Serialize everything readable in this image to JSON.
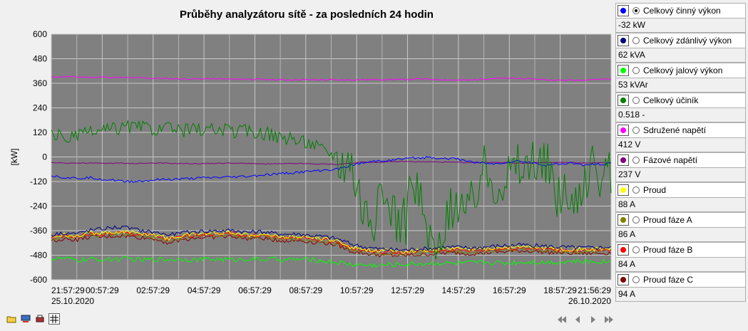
{
  "chart_data": {
    "type": "line",
    "title": "Průběhy analyzátoru sítě - za posledních 24 hodin",
    "ylabel": "[kW]",
    "ylim": [
      -600,
      600
    ],
    "yticks": [
      "600",
      "480",
      "360",
      "240",
      "120",
      "0",
      "-120",
      "-240",
      "-360",
      "-480",
      "-600"
    ],
    "xticks": [
      "21:57:29",
      "00:57:29",
      "02:57:29",
      "04:57:29",
      "06:57:29",
      "08:57:29",
      "10:57:29",
      "12:57:29",
      "14:57:29",
      "16:57:29",
      "18:57:29",
      "21:56:29"
    ],
    "date_start": "25.10.2020",
    "date_end": "26.10.2020",
    "grid": true,
    "series": [
      {
        "name": "Sdružené napětí",
        "color": "#ff00ff",
        "values": [
          390,
          392,
          391,
          389,
          390,
          388,
          387,
          386,
          384,
          383,
          381,
          381,
          382,
          381,
          380,
          381,
          379,
          378,
          377,
          378,
          377,
          378,
          376,
          377,
          378,
          378,
          379,
          378,
          381,
          380,
          378,
          376,
          375,
          380,
          384,
          384,
          383,
          381,
          377,
          375,
          375,
          377,
          380,
          382
        ]
      },
      {
        "name": "Celkový jalový výkon",
        "color": "#00ff00",
        "values": [
          -498,
          -496,
          -505,
          -500,
          -502,
          -499,
          -498,
          -504,
          -500,
          -501,
          -497,
          -503,
          -499,
          -500,
          -502,
          -498,
          -501,
          -499,
          -503,
          -500,
          -502,
          -510,
          -515,
          -525,
          -528,
          -530,
          -527,
          -525,
          -522,
          -520,
          -518,
          -521,
          -519,
          -515,
          -516,
          -518,
          -514,
          -512,
          -515,
          -513,
          -510,
          -512,
          -511,
          -510
        ]
      },
      {
        "name": "Proud fáze C",
        "color": "#800000",
        "values": [
          -410,
          -400,
          -405,
          -390,
          -392,
          -385,
          -388,
          -395,
          -400,
          -420,
          -405,
          -395,
          -392,
          -390,
          -388,
          -400,
          -395,
          -405,
          -410,
          -408,
          -415,
          -420,
          -430,
          -460,
          -470,
          -478,
          -480,
          -482,
          -478,
          -475,
          -470,
          -468,
          -472,
          -470,
          -465,
          -462,
          -458,
          -460,
          -465,
          -468,
          -470,
          -472,
          -470,
          -468
        ]
      },
      {
        "name": "Proud fáze A",
        "color": "#808000",
        "values": [
          -402,
          -392,
          -396,
          -382,
          -384,
          -377,
          -380,
          -386,
          -392,
          -411,
          -397,
          -387,
          -384,
          -382,
          -380,
          -392,
          -387,
          -397,
          -402,
          -400,
          -407,
          -412,
          -422,
          -452,
          -462,
          -470,
          -472,
          -474,
          -470,
          -467,
          -462,
          -460,
          -464,
          -462,
          -457,
          -454,
          -450,
          -452,
          -457,
          -460,
          -462,
          -464,
          -462,
          -460
        ]
      },
      {
        "name": "Proud fáze B",
        "color": "#ff0000",
        "values": [
          -396,
          -386,
          -390,
          -376,
          -378,
          -371,
          -374,
          -380,
          -386,
          -405,
          -391,
          -381,
          -378,
          -376,
          -374,
          -386,
          -381,
          -391,
          -396,
          -394,
          -401,
          -406,
          -416,
          -446,
          -456,
          -464,
          -466,
          -468,
          -464,
          -461,
          -456,
          -454,
          -458,
          -456,
          -451,
          -448,
          -444,
          -446,
          -451,
          -454,
          -456,
          -458,
          -456,
          -454
        ]
      },
      {
        "name": "Proud",
        "color": "#ffff00",
        "values": [
          -390,
          -380,
          -384,
          -370,
          -372,
          -365,
          -368,
          -374,
          -380,
          -399,
          -385,
          -375,
          -372,
          -370,
          -368,
          -380,
          -375,
          -385,
          -390,
          -388,
          -395,
          -400,
          -410,
          -440,
          -450,
          -458,
          -460,
          -462,
          -458,
          -455,
          -450,
          -448,
          -452,
          -450,
          -445,
          -442,
          -438,
          -440,
          -445,
          -448,
          -450,
          -452,
          -450,
          -448
        ]
      },
      {
        "name": "Celkový zdánlivý výkon",
        "color": "#000080",
        "values": [
          -380,
          -370,
          -374,
          -358,
          -350,
          -342,
          -348,
          -360,
          -368,
          -380,
          -372,
          -365,
          -362,
          -360,
          -358,
          -368,
          -364,
          -372,
          -378,
          -376,
          -384,
          -390,
          -400,
          -425,
          -440,
          -448,
          -452,
          -455,
          -450,
          -448,
          -442,
          -440,
          -444,
          -442,
          -436,
          -433,
          -430,
          -432,
          -436,
          -440,
          -442,
          -444,
          -442,
          -440
        ]
      },
      {
        "name": "Fázové napětí",
        "color": "#800080",
        "values": [
          -28,
          -29,
          -30,
          -30,
          -31,
          -30,
          -32,
          -31,
          -30,
          -31,
          -32,
          -33,
          -32,
          -31,
          -30,
          -32,
          -33,
          -34,
          -33,
          -32,
          -34,
          -35,
          -36,
          -30,
          -25,
          -26,
          -24,
          -22,
          -23,
          -24,
          -25,
          -26,
          -28,
          -27,
          -26,
          -28,
          -30,
          -29,
          -28,
          -27,
          -28,
          -30,
          -29,
          -28
        ]
      },
      {
        "name": "Celkový činný výkon",
        "color": "#0000ff",
        "values": [
          -90,
          -100,
          -105,
          -100,
          -110,
          -115,
          -120,
          -118,
          -112,
          -110,
          -108,
          -105,
          -102,
          -100,
          -98,
          -95,
          -90,
          -85,
          -80,
          -75,
          -70,
          -65,
          -60,
          -40,
          -30,
          -20,
          -15,
          -10,
          -5,
          -2,
          -5,
          -10,
          -20,
          -30,
          -35,
          -25,
          -20,
          -30,
          -40,
          -35,
          -30,
          -40,
          -35,
          -32
        ]
      },
      {
        "name": "Celkový účiník",
        "color": "#008000",
        "values": [
          110,
          95,
          100,
          120,
          130,
          140,
          150,
          145,
          140,
          135,
          130,
          140,
          135,
          130,
          125,
          130,
          120,
          110,
          90,
          80,
          70,
          30,
          10,
          0,
          -250,
          -280,
          -200,
          -350,
          -120,
          -400,
          -480,
          -150,
          -300,
          -50,
          -100,
          -80,
          -40,
          -60,
          -30,
          -200,
          -250,
          -60,
          -90,
          -120
        ]
      }
    ]
  },
  "legend": [
    {
      "name": "Celkový činný výkon",
      "value": "-32 kW",
      "color": "#0000ff",
      "selected": true
    },
    {
      "name": "Celkový zdánlivý výkon",
      "value": "62 kVA",
      "color": "#000080",
      "selected": false
    },
    {
      "name": "Celkový jalový výkon",
      "value": "53 kVAr",
      "color": "#00ff00",
      "selected": false
    },
    {
      "name": "Celkový účiník",
      "value": "0.518 -",
      "color": "#008000",
      "selected": false
    },
    {
      "name": "Sdružené napětí",
      "value": "412 V",
      "color": "#ff00ff",
      "selected": false
    },
    {
      "name": "Fázové napětí",
      "value": "237 V",
      "color": "#800080",
      "selected": false
    },
    {
      "name": "Proud",
      "value": "88 A",
      "color": "#ffff00",
      "selected": false
    },
    {
      "name": "Proud fáze A",
      "value": "86 A",
      "color": "#808000",
      "selected": false
    },
    {
      "name": "Proud fáze B",
      "value": "84 A",
      "color": "#ff0000",
      "selected": false
    },
    {
      "name": "Proud fáze C",
      "value": "94 A",
      "color": "#800000",
      "selected": false
    }
  ],
  "toolbar": [
    {
      "icon": "folder-icon"
    },
    {
      "icon": "monitor-icon"
    },
    {
      "icon": "printer-icon"
    },
    {
      "icon": "grid-icon"
    }
  ],
  "nav": [
    {
      "icon": "first-page-icon"
    },
    {
      "icon": "previous-icon"
    },
    {
      "icon": "next-icon"
    },
    {
      "icon": "last-page-icon"
    }
  ]
}
